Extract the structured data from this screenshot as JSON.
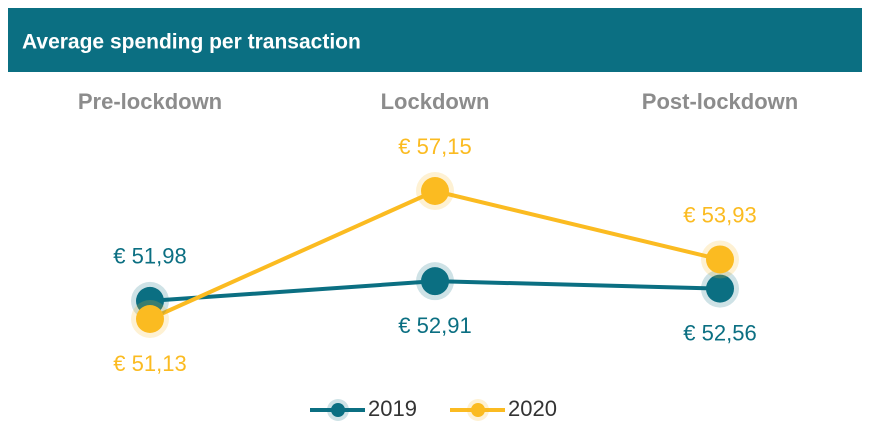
{
  "chart_data": {
    "type": "line",
    "title": "Average spending per transaction",
    "categories": [
      "Pre-lockdown",
      "Lockdown",
      "Post-lockdown"
    ],
    "series": [
      {
        "name": "2019",
        "color": "#0b6f82",
        "values": [
          51.98,
          52.91,
          52.56
        ],
        "value_labels": [
          "€ 51,98",
          "€ 52,91",
          "€ 52,56"
        ]
      },
      {
        "name": "2020",
        "color": "#fbbb21",
        "values": [
          51.13,
          57.15,
          53.93
        ],
        "value_labels": [
          "€ 51,13",
          "€ 57,15",
          "€ 53,93"
        ]
      }
    ],
    "legend": "bottom"
  }
}
